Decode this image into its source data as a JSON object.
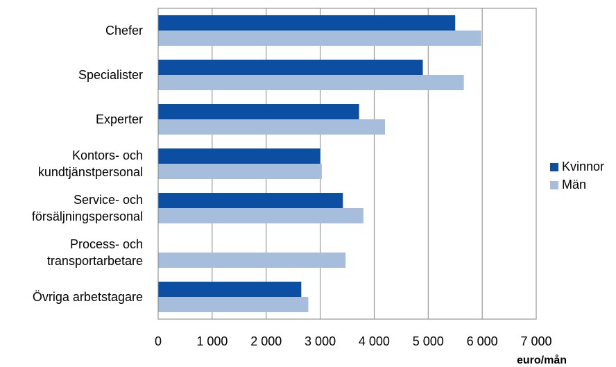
{
  "chart_data": {
    "type": "bar",
    "orientation": "horizontal",
    "categories": [
      [
        "Chefer"
      ],
      [
        "Specialister"
      ],
      [
        "Experter"
      ],
      [
        "Kontors- och",
        "kundtjänstpersonal"
      ],
      [
        "Service- och",
        "försäljningspersonal"
      ],
      [
        "Process- och",
        "transportarbetare"
      ],
      [
        "Övriga arbetstagare"
      ]
    ],
    "series": [
      {
        "name": "Kvinnor",
        "color": "#0b4ea2",
        "values": [
          5500,
          4900,
          3720,
          3000,
          3420,
          null,
          2650
        ]
      },
      {
        "name": "Män",
        "color": "#a6bedc",
        "values": [
          5980,
          5660,
          4200,
          3030,
          3800,
          3470,
          2780
        ]
      }
    ],
    "xlim": [
      0,
      7000
    ],
    "x_ticks": [
      0,
      1000,
      2000,
      3000,
      4000,
      5000,
      6000,
      7000
    ],
    "x_tick_labels": [
      "0",
      "1 000",
      "2 000",
      "3 000",
      "4 000",
      "5 000",
      "6 000",
      "7 000"
    ],
    "xlabel": "euro/mån",
    "grid": "vertical",
    "legend_position": "right"
  }
}
